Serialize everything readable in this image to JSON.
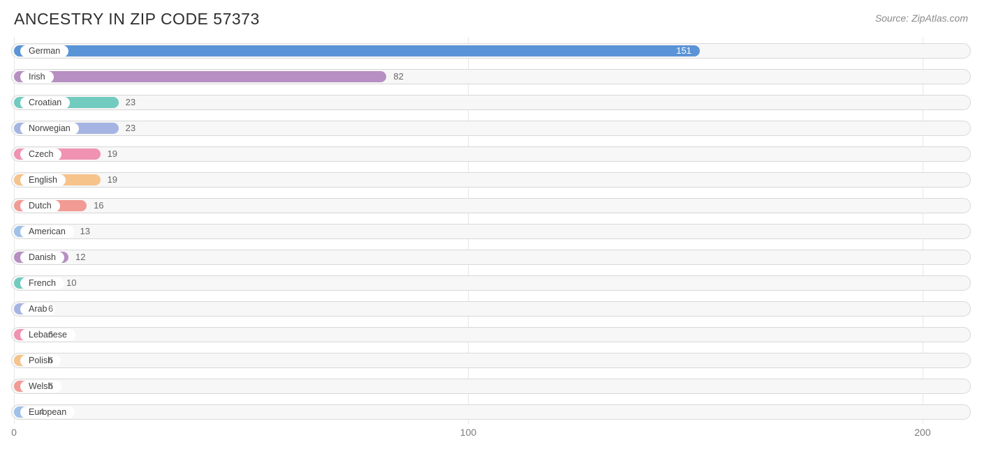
{
  "title": "ANCESTRY IN ZIP CODE 57373",
  "source": "Source: ZipAtlas.com",
  "chart": {
    "type": "bar-horizontal",
    "xlim": [
      0,
      210
    ],
    "xticks": [
      0,
      100,
      200
    ],
    "track_bg": "#f7f7f7",
    "track_border": "#d8d8d8",
    "grid_color": "#e6e6e6",
    "title_fontsize": 23,
    "label_fontsize": 12.5,
    "value_fontsize": 13,
    "items": [
      {
        "label": "German",
        "value": 151,
        "color": "#5b94d6",
        "value_inside": true
      },
      {
        "label": "Irish",
        "value": 82,
        "color": "#b78fc2",
        "value_inside": false
      },
      {
        "label": "Croatian",
        "value": 23,
        "color": "#72cbbf",
        "value_inside": false
      },
      {
        "label": "Norwegian",
        "value": 23,
        "color": "#a5b4e2",
        "value_inside": false
      },
      {
        "label": "Czech",
        "value": 19,
        "color": "#f092b1",
        "value_inside": false
      },
      {
        "label": "English",
        "value": 19,
        "color": "#f6c38b",
        "value_inside": false
      },
      {
        "label": "Dutch",
        "value": 16,
        "color": "#f29a94",
        "value_inside": false
      },
      {
        "label": "American",
        "value": 13,
        "color": "#9fc1ea",
        "value_inside": false
      },
      {
        "label": "Danish",
        "value": 12,
        "color": "#b78fc2",
        "value_inside": false
      },
      {
        "label": "French",
        "value": 10,
        "color": "#72cbbf",
        "value_inside": false
      },
      {
        "label": "Arab",
        "value": 6,
        "color": "#a5b4e2",
        "value_inside": false
      },
      {
        "label": "Lebanese",
        "value": 6,
        "color": "#f092b1",
        "value_inside": false
      },
      {
        "label": "Polish",
        "value": 6,
        "color": "#f6c38b",
        "value_inside": false
      },
      {
        "label": "Welsh",
        "value": 6,
        "color": "#f29a94",
        "value_inside": false
      },
      {
        "label": "European",
        "value": 4,
        "color": "#9fc1ea",
        "value_inside": false
      }
    ]
  }
}
